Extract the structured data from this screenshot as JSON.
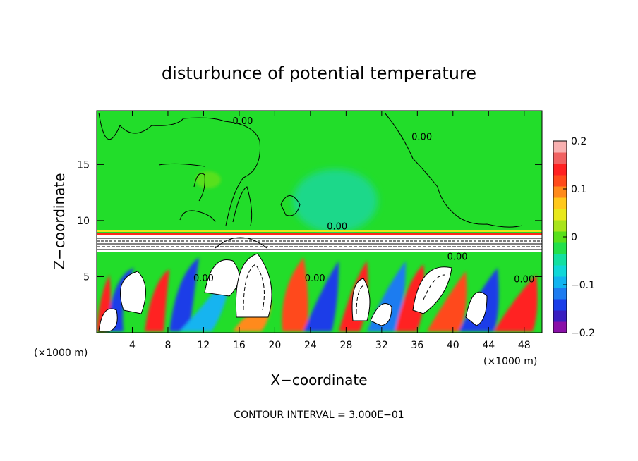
{
  "chart_data": {
    "type": "heatmap",
    "title": "disturbunce of potential temperature",
    "xlabel": "X−coordinate",
    "ylabel": "Z−coordinate",
    "x_unit_left": "(×1000 m)",
    "x_unit_right": "(×1000 m)",
    "xlim": [
      0,
      50
    ],
    "ylim": [
      0,
      19.8
    ],
    "x_ticks": [
      4,
      8,
      12,
      16,
      20,
      24,
      28,
      32,
      36,
      40,
      44,
      48
    ],
    "y_ticks": [
      5,
      10,
      15
    ],
    "colorbar": {
      "range": [
        -0.2,
        0.2
      ],
      "ticks": [
        {
          "value": 0.2,
          "label": "0.2"
        },
        {
          "value": 0.1,
          "label": "0.1"
        },
        {
          "value": 0,
          "label": "0"
        },
        {
          "value": -0.1,
          "label": "−0.1"
        },
        {
          "value": -0.2,
          "label": "−0.2"
        }
      ],
      "colors": [
        "#8a10a8",
        "#3a1ec0",
        "#1a3ee8",
        "#1e7cf0",
        "#12b4f0",
        "#10d8d8",
        "#12e0a0",
        "#22e04a",
        "#58e01a",
        "#a8e41a",
        "#e8e81a",
        "#ffc81a",
        "#ff8a1a",
        "#ff4a1a",
        "#ff2020",
        "#f06060",
        "#f8b0b0"
      ]
    },
    "contour_labels": [
      {
        "text": "0.00",
        "x": 16.4,
        "z": 18.6
      },
      {
        "text": "0.00",
        "x": 36.5,
        "z": 17.2
      },
      {
        "text": "0.00",
        "x": 27.0,
        "z": 9.2
      },
      {
        "text": "0.00",
        "x": 40.5,
        "z": 6.5
      },
      {
        "text": "0.00",
        "x": 24.5,
        "z": 4.6
      },
      {
        "text": "0.00",
        "x": 12.0,
        "z": 4.6
      },
      {
        "text": "0.00",
        "x": 48.0,
        "z": 4.5
      }
    ],
    "footer": "CONTOUR INTERVAL = 3.000E−01"
  }
}
